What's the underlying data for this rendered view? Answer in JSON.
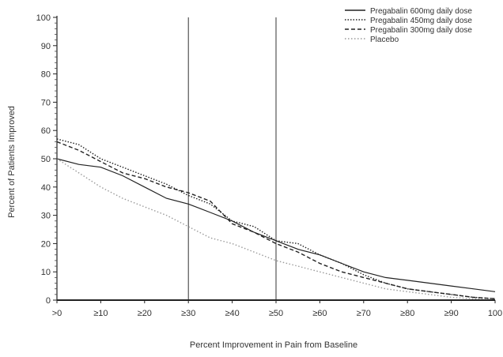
{
  "chart_data": {
    "type": "line",
    "title": "",
    "xlabel": "Percent Improvement in Pain from Baseline",
    "ylabel": "Percent of Patients Improved",
    "xlim": [
      0,
      100
    ],
    "ylim": [
      0,
      100
    ],
    "x_tick_labels": [
      ">0",
      "≥10",
      "≥20",
      "≥30",
      "≥40",
      "≥50",
      "≥60",
      "≥70",
      "≥80",
      "≥90",
      "100"
    ],
    "x_tick_values": [
      0,
      10,
      20,
      30,
      40,
      50,
      60,
      70,
      80,
      90,
      100
    ],
    "y_ticks": [
      0,
      10,
      20,
      30,
      40,
      50,
      60,
      70,
      80,
      90,
      100
    ],
    "y_tick_labels": [
      "0",
      "10",
      "20",
      "30",
      "40",
      "50",
      "60",
      "70",
      "80",
      "90",
      "100"
    ],
    "reference_lines_x": [
      30,
      50
    ],
    "grid": false,
    "legend_position": "top-right",
    "series": [
      {
        "name": "Pregabalin 600mg daily dose",
        "style": "solid",
        "color": "#222222",
        "x": [
          0,
          5,
          10,
          15,
          20,
          25,
          30,
          35,
          40,
          45,
          50,
          55,
          60,
          65,
          70,
          75,
          80,
          85,
          90,
          95,
          100
        ],
        "y": [
          50,
          48,
          47,
          44,
          40,
          36,
          34,
          31,
          28,
          24,
          21,
          18,
          16,
          13,
          10,
          8,
          7,
          6,
          5,
          4,
          3
        ]
      },
      {
        "name": "Pregabalin 450mg daily dose",
        "style": "dotted",
        "color": "#222222",
        "x": [
          0,
          5,
          10,
          15,
          20,
          25,
          30,
          35,
          40,
          45,
          50,
          55,
          60,
          65,
          70,
          75,
          80,
          85,
          90,
          95,
          100
        ],
        "y": [
          57,
          55,
          50,
          47,
          44,
          41,
          37,
          34,
          28,
          26,
          21,
          20,
          16,
          13,
          9,
          6,
          4,
          3,
          2,
          1,
          0.5
        ]
      },
      {
        "name": "Pregabalin 300mg daily dose",
        "style": "dashed",
        "color": "#222222",
        "x": [
          0,
          5,
          10,
          15,
          20,
          25,
          30,
          35,
          40,
          45,
          50,
          55,
          60,
          65,
          70,
          75,
          80,
          85,
          90,
          95,
          100
        ],
        "y": [
          56,
          53,
          49,
          45,
          43,
          40,
          38,
          35,
          27,
          24,
          20,
          17,
          13,
          10,
          8,
          6,
          4,
          3,
          2,
          1,
          0.5
        ]
      },
      {
        "name": "Placebo",
        "style": "dotted-light",
        "color": "#9a9a9a",
        "x": [
          0,
          5,
          10,
          15,
          20,
          25,
          30,
          35,
          40,
          45,
          50,
          55,
          60,
          65,
          70,
          75,
          80,
          85,
          90,
          95,
          100
        ],
        "y": [
          50,
          45,
          40,
          36,
          33,
          30,
          26,
          22,
          20,
          17,
          14,
          12,
          10,
          8,
          6,
          4,
          3,
          2,
          1,
          0.5,
          0
        ]
      }
    ]
  }
}
